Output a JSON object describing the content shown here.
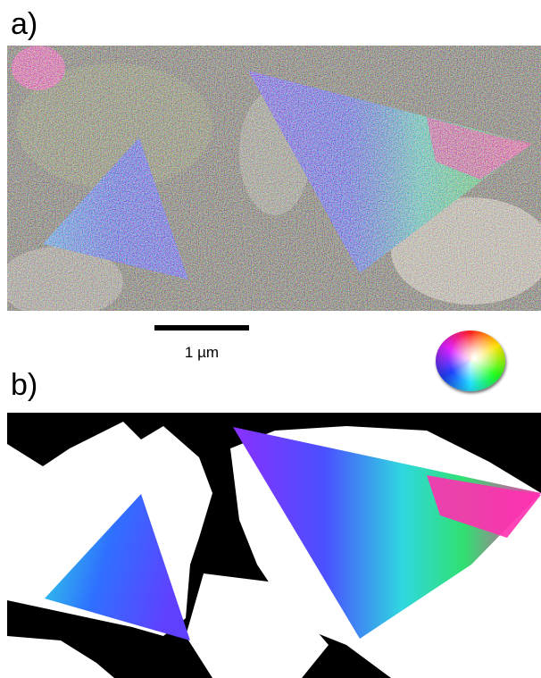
{
  "panels": [
    {
      "label": "a)"
    },
    {
      "label": "b)"
    }
  ],
  "scale_bar": {
    "label": "1 µm"
  },
  "colors": {
    "blue": "#2f55ff",
    "cyan": "#2fd8e0",
    "magenta": "#e020e0",
    "green": "#30e080",
    "background_noise": "#6b6a55"
  }
}
